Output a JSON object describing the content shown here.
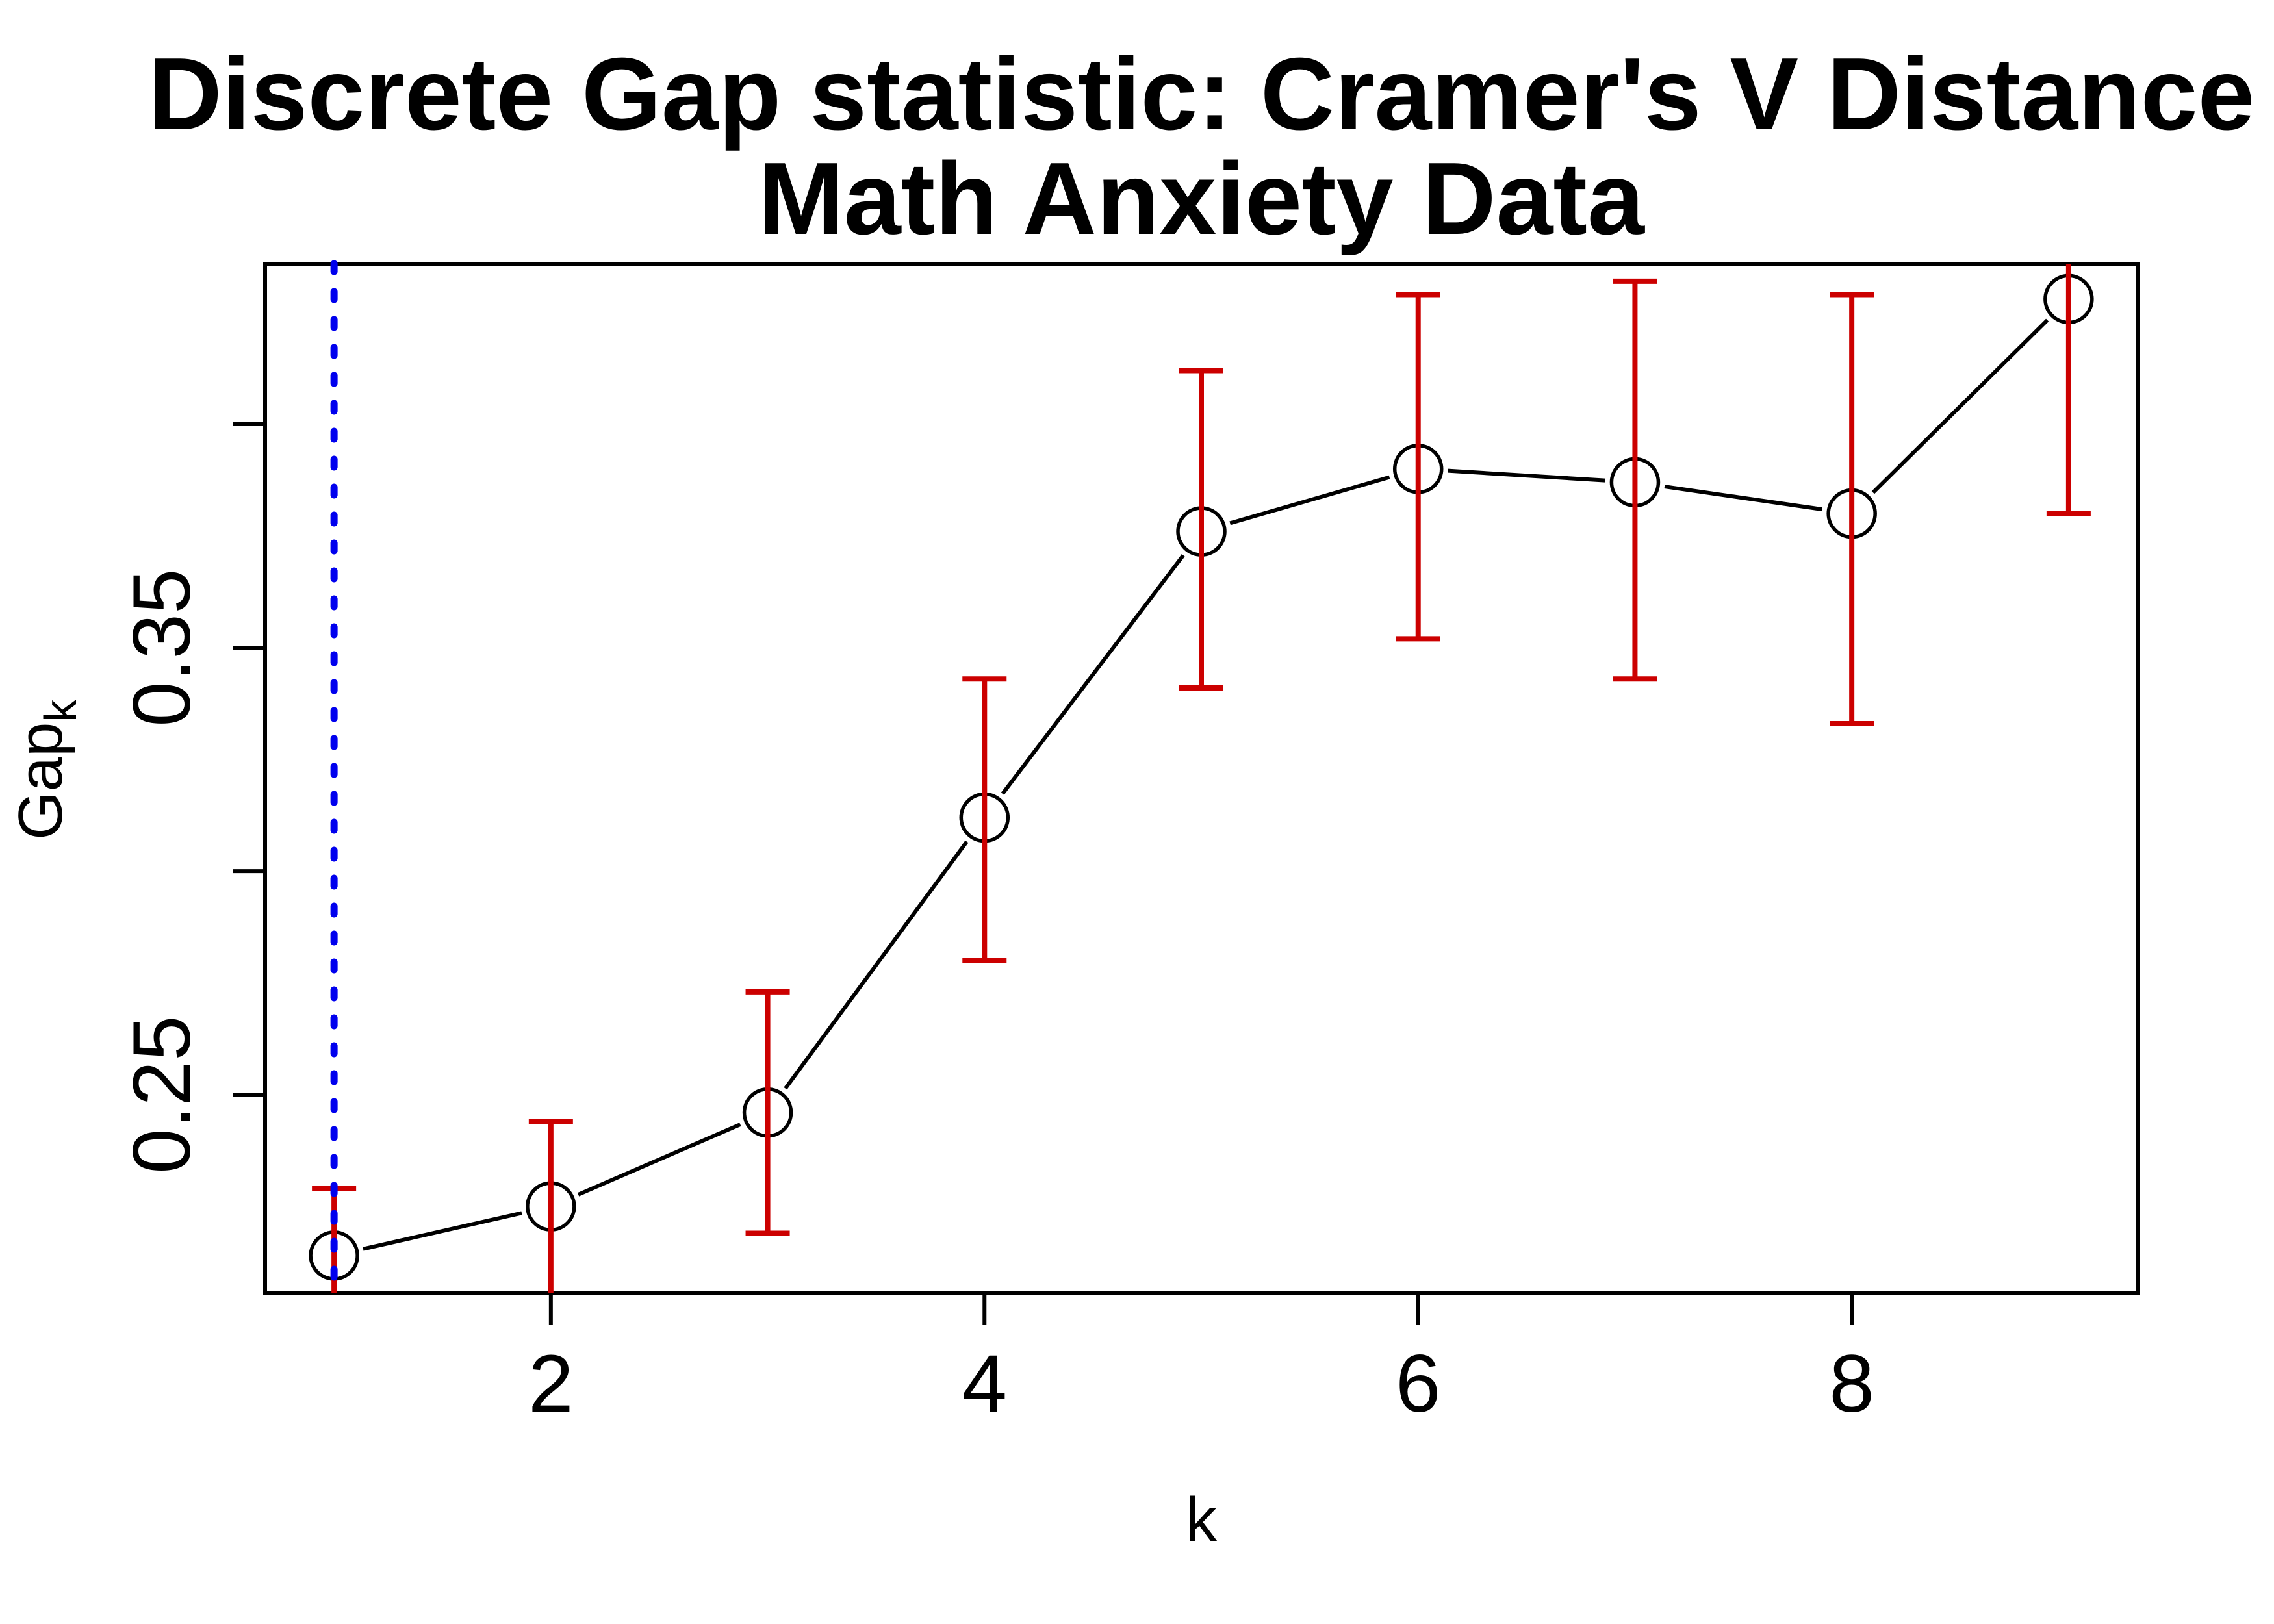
{
  "chart_data": {
    "type": "line",
    "subtype": "points-with-error-bars",
    "title_line1": "Discrete Gap statistic: Cramer's V Distance",
    "title_line2": "Math Anxiety Data",
    "xlabel": "k",
    "ylabel_main": "Gap",
    "ylabel_sub": "k",
    "x": [
      1,
      2,
      3,
      4,
      5,
      6,
      7,
      8,
      9
    ],
    "gap": [
      0.214,
      0.225,
      0.246,
      0.312,
      0.376,
      0.39,
      0.387,
      0.38,
      0.428
    ],
    "err_upper": [
      0.229,
      0.244,
      0.273,
      0.343,
      0.412,
      0.429,
      0.432,
      0.429,
      0.476
    ],
    "err_lower": [
      0.2,
      0.205,
      0.219,
      0.28,
      0.341,
      0.352,
      0.343,
      0.333,
      0.38
    ],
    "xlim": [
      0.682,
      9.318
    ],
    "ylim": [
      0.2057,
      0.4359
    ],
    "x_ticks": [
      {
        "v": 2,
        "label": "2"
      },
      {
        "v": 4,
        "label": "4"
      },
      {
        "v": 6,
        "label": "6"
      },
      {
        "v": 8,
        "label": "8"
      }
    ],
    "y_ticks": [
      {
        "v": 0.25,
        "label": "0.25"
      },
      {
        "v": 0.3,
        "label": ""
      },
      {
        "v": 0.35,
        "label": "0.35"
      },
      {
        "v": 0.4,
        "label": ""
      }
    ],
    "vline_x": 1,
    "vline_style": "dotted",
    "marker": "open-circle",
    "grid": "off",
    "legend": "none",
    "colors": {
      "series": "#000000",
      "error_bars": "#CC0000",
      "vline": "#0000EE",
      "text": "#000000",
      "background": "#FFFFFF"
    }
  }
}
